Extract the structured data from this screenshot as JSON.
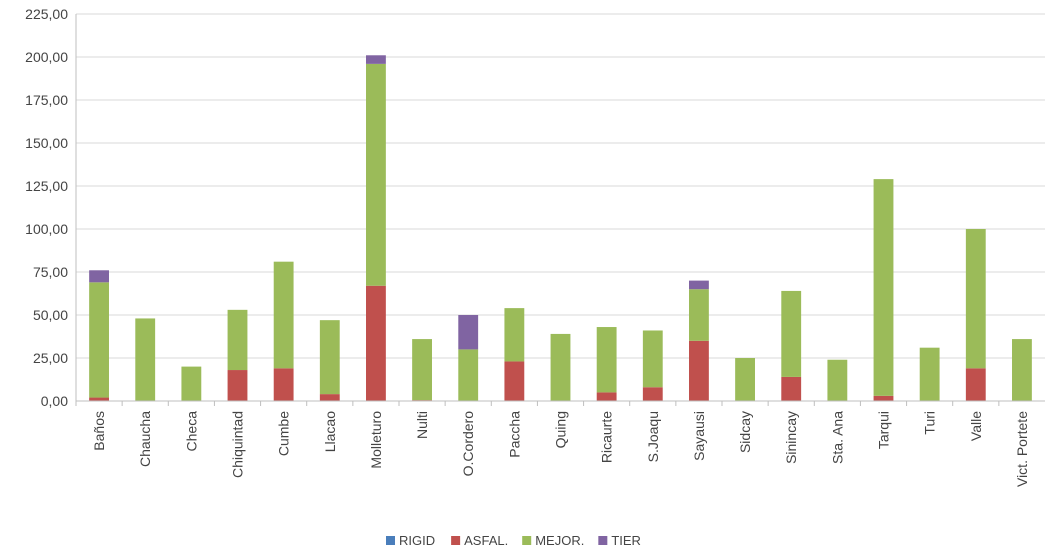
{
  "colors": {
    "RIGID": "#4a7ebb",
    "ASFAL.": "#c0504d",
    "MEJOR.": "#9bbb59",
    "TIER": "#8064a2",
    "grid": "#d9d9d9",
    "axis": "#bfbfbf"
  },
  "chart_data": {
    "type": "bar",
    "stacked": true,
    "title": "",
    "xlabel": "",
    "ylabel": "",
    "ylim": [
      0,
      225
    ],
    "yticks": [
      "0,00",
      "25,00",
      "50,00",
      "75,00",
      "100,00",
      "125,00",
      "150,00",
      "175,00",
      "200,00",
      "225,00"
    ],
    "grid": "horizontal",
    "legend": "bottom",
    "categories": [
      "Baños",
      "Chaucha",
      "Checa",
      "Chiquintad",
      "Cumbe",
      "Llacao",
      "Molleturo",
      "Nulti",
      "O.Cordero",
      "Paccha",
      "Quing",
      "Ricaurte",
      "S.Joaqu",
      "Sayausi",
      "Sidcay",
      "Sinincay",
      "Sta. Ana",
      "Tarqui",
      "Turi",
      "Valle",
      "Vict. Portete"
    ],
    "series": [
      {
        "name": "RIGID",
        "values": [
          0,
          0,
          0,
          0,
          0,
          0,
          0,
          0,
          0,
          0,
          0,
          0,
          0,
          0,
          0,
          0,
          0,
          0,
          0,
          0,
          0
        ]
      },
      {
        "name": "ASFAL.",
        "values": [
          2,
          0,
          0,
          18,
          19,
          4,
          67,
          0.5,
          0,
          23,
          0,
          5,
          8,
          35,
          0,
          14,
          0,
          3,
          0,
          19,
          0
        ]
      },
      {
        "name": "MEJOR.",
        "values": [
          67,
          48,
          20,
          35,
          62,
          43,
          129,
          35.5,
          30,
          31,
          39,
          38,
          33,
          30,
          25,
          50,
          24,
          126,
          31,
          81,
          36
        ]
      },
      {
        "name": "TIER",
        "values": [
          7,
          0,
          0,
          0,
          0,
          0,
          5,
          0,
          20,
          0,
          0,
          0,
          0,
          5,
          0,
          0,
          0,
          0,
          0,
          0,
          0
        ]
      }
    ]
  }
}
